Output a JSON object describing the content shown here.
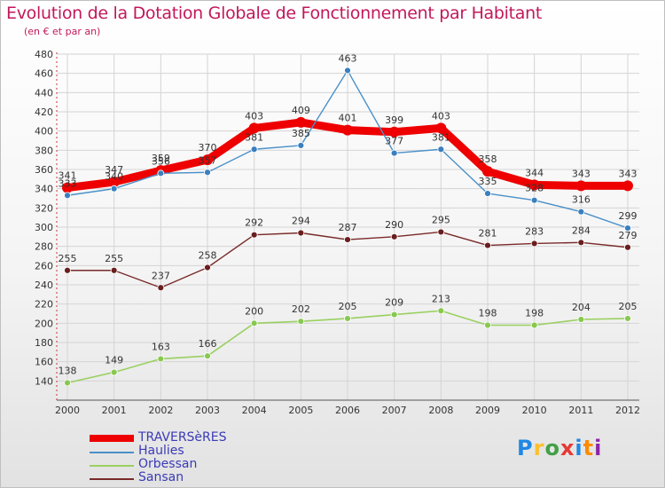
{
  "header": {
    "title": "Evolution de la Dotation Globale de Fonctionnement par Habitant",
    "subtitle": "(en € et par an)"
  },
  "logo": {
    "letters": [
      "P",
      "r",
      "o",
      "x",
      "i",
      "t",
      "i"
    ],
    "colors": [
      "#1e88e5",
      "#fbc02d",
      "#43a047",
      "#e53935",
      "#1e88e5",
      "#fb8c00",
      "#8e24aa"
    ]
  },
  "chart_data": {
    "type": "line",
    "x": [
      "2000",
      "2001",
      "2002",
      "2003",
      "2004",
      "2005",
      "2006",
      "2007",
      "2008",
      "2009",
      "2010",
      "2011",
      "2012"
    ],
    "ylim": [
      120,
      480
    ],
    "yticks": [
      140,
      160,
      180,
      200,
      220,
      240,
      260,
      280,
      300,
      320,
      340,
      360,
      380,
      400,
      420,
      440,
      460,
      480
    ],
    "grid": true,
    "legend_position": "bottom-left",
    "series": [
      {
        "name": "TRAVERSèRES",
        "color": "#ee0000",
        "values": [
          341,
          347,
          359,
          370,
          403,
          409,
          401,
          399,
          403,
          358,
          344,
          343,
          343
        ]
      },
      {
        "name": "Haulies",
        "color": "#4a90c8",
        "values": [
          333,
          340,
          356,
          357,
          381,
          385,
          463,
          377,
          381,
          335,
          328,
          316,
          299
        ]
      },
      {
        "name": "Orbessan",
        "color": "#99d060",
        "values": [
          138,
          149,
          163,
          166,
          200,
          202,
          205,
          209,
          213,
          198,
          198,
          204,
          205
        ]
      },
      {
        "name": "Sansan",
        "color": "#7a2a2a",
        "values": [
          255,
          255,
          237,
          258,
          292,
          294,
          287,
          290,
          295,
          281,
          283,
          284,
          279
        ]
      }
    ]
  }
}
